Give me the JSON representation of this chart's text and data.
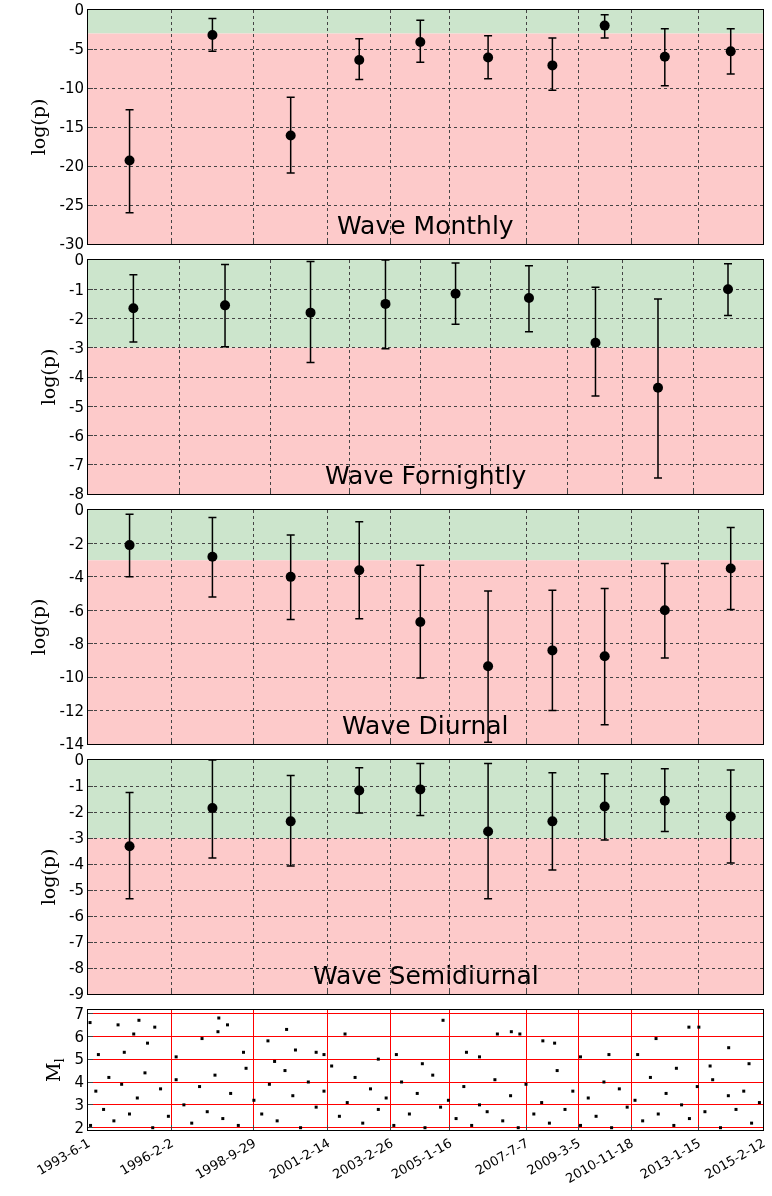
{
  "chart_data": [
    {
      "type": "scatter",
      "title": "Wave Monthly",
      "ylabel": "log(p)",
      "marker": "circle",
      "grid": true,
      "tick_labels": "y",
      "xlim": [
        "1993-06-01",
        "2015-02-12"
      ],
      "ylim": [
        -30,
        0
      ],
      "yticks": [
        -30,
        -25,
        -20,
        -15,
        -10,
        -5,
        0
      ],
      "xticks": [
        {
          "value": "1993-06-01",
          "label": null
        },
        {
          "value": "1996-02-02",
          "label": null
        },
        {
          "value": "1998-09-29",
          "label": null
        },
        {
          "value": "2001-02-14",
          "label": null
        },
        {
          "value": "2003-02-26",
          "label": null
        },
        {
          "value": "2005-01-16",
          "label": null
        },
        {
          "value": "2007-07-07",
          "label": null
        },
        {
          "value": "2009-03-05",
          "label": null
        },
        {
          "value": "2010-11-18",
          "label": null
        },
        {
          "value": "2013-01-15",
          "label": null
        },
        {
          "value": "2015-02-12",
          "label": null
        }
      ],
      "x": [
        "1994-10-02",
        "1997-06-01",
        "1999-12-07",
        "2002-02-19",
        "2004-02-06",
        "2006-04-12",
        "2008-05-06",
        "2010-01-10",
        "2011-12-17",
        "2014-01-29"
      ],
      "series": [
        {
          "color": "#000000",
          "values": [
            -19.3,
            -3.2,
            -16.1,
            -6.4,
            -4.1,
            -6.1,
            -7.1,
            -2.0,
            -6.0,
            -5.3
          ],
          "errors": [
            [
              -26,
              -12.8
            ],
            [
              -5.3,
              -1.1
            ],
            [
              -20.9,
              -11.2
            ],
            [
              -8.9,
              -3.7
            ],
            [
              -6.7,
              -1.3
            ],
            [
              -8.8,
              -3.3
            ],
            [
              -10.3,
              -3.6
            ],
            [
              -3.6,
              -0.6
            ],
            [
              -9.7,
              -2.4
            ],
            [
              -8.2,
              -2.4
            ]
          ]
        }
      ],
      "bands": [
        {
          "axis": "y",
          "from": -3,
          "to": 0,
          "color": "#cce5cc"
        },
        {
          "axis": "y",
          "from": -30,
          "to": -3,
          "color": "#fdcaca"
        }
      ]
    },
    {
      "type": "scatter",
      "title": "Wave Fornightly",
      "ylabel": "log(p)",
      "marker": "circle",
      "grid": true,
      "tick_labels": "y",
      "xlim": [
        "1993-06-01",
        "2015-02-12"
      ],
      "ylim": [
        -8,
        0
      ],
      "yticks": [
        -8,
        -7,
        -6,
        -5,
        -4,
        -3,
        -2,
        -1,
        0
      ],
      "xticks": [
        {
          "value": "1993-06-01",
          "label": null
        },
        {
          "value": "1996-05-05",
          "label": null
        },
        {
          "value": "1999-04-18",
          "label": null
        },
        {
          "value": "2001-11-02",
          "label": null
        },
        {
          "value": "2004-02-14",
          "label": null
        },
        {
          "value": "2006-05-05",
          "label": null
        },
        {
          "value": "2008-11-05",
          "label": null
        },
        {
          "value": "2010-08-13",
          "label": null
        },
        {
          "value": "2012-11-13",
          "label": null
        },
        {
          "value": "2015-02-12",
          "label": null
        }
      ],
      "x": [
        "1994-11-16",
        "1997-10-27",
        "2000-07-27",
        "2002-12-24",
        "2005-03-26",
        "2007-08-05",
        "2009-09-24",
        "2011-09-28",
        "2013-12-28"
      ],
      "series": [
        {
          "color": "#000000",
          "values": [
            -1.65,
            -1.55,
            -1.8,
            -1.5,
            -1.15,
            -1.3,
            -2.83,
            -4.37,
            -1.0
          ],
          "errors": [
            [
              -2.8,
              -0.5
            ],
            [
              -2.97,
              -0.15
            ],
            [
              -3.5,
              -0.05
            ],
            [
              -3.03,
              0
            ],
            [
              -2.2,
              -0.1
            ],
            [
              -2.45,
              -0.2
            ],
            [
              -4.65,
              -0.93
            ],
            [
              -7.45,
              -1.33
            ],
            [
              -1.9,
              -0.13
            ]
          ]
        }
      ],
      "bands": [
        {
          "axis": "y",
          "from": -3,
          "to": 0,
          "color": "#cce5cc"
        },
        {
          "axis": "y",
          "from": -8,
          "to": -3,
          "color": "#fdcaca"
        }
      ]
    },
    {
      "type": "scatter",
      "title": "Wave Diurnal",
      "ylabel": "log(p)",
      "marker": "circle",
      "grid": true,
      "tick_labels": "y",
      "xlim": [
        "1993-06-01",
        "2015-02-12"
      ],
      "ylim": [
        -14,
        0
      ],
      "yticks": [
        -14,
        -12,
        -10,
        -8,
        -6,
        -4,
        -2,
        0
      ],
      "xticks": [
        {
          "value": "1993-06-01",
          "label": null
        },
        {
          "value": "1996-02-02",
          "label": null
        },
        {
          "value": "1998-09-29",
          "label": null
        },
        {
          "value": "2001-02-14",
          "label": null
        },
        {
          "value": "2003-02-26",
          "label": null
        },
        {
          "value": "2005-01-16",
          "label": null
        },
        {
          "value": "2007-07-07",
          "label": null
        },
        {
          "value": "2009-03-05",
          "label": null
        },
        {
          "value": "2010-11-18",
          "label": null
        },
        {
          "value": "2013-01-15",
          "label": null
        },
        {
          "value": "2015-02-12",
          "label": null
        }
      ],
      "x": [
        "1994-10-02",
        "1997-06-01",
        "1999-12-07",
        "2002-02-19",
        "2004-02-06",
        "2006-04-12",
        "2008-05-06",
        "2010-01-10",
        "2011-12-17",
        "2014-01-29"
      ],
      "series": [
        {
          "color": "#000000",
          "values": [
            -2.1,
            -2.8,
            -4.0,
            -3.6,
            -6.7,
            -9.35,
            -8.4,
            -8.75,
            -6.0,
            -3.5
          ],
          "errors": [
            [
              -4.0,
              -0.25
            ],
            [
              -5.2,
              -0.45
            ],
            [
              -6.55,
              -1.5
            ],
            [
              -6.5,
              -0.7
            ],
            [
              -10.05,
              -3.3
            ],
            [
              -13.9,
              -4.85
            ],
            [
              -12.0,
              -4.8
            ],
            [
              -12.85,
              -4.7
            ],
            [
              -8.85,
              -3.2
            ],
            [
              -5.95,
              -1.05
            ]
          ]
        }
      ],
      "bands": [
        {
          "axis": "y",
          "from": -3,
          "to": 0,
          "color": "#cce5cc"
        },
        {
          "axis": "y",
          "from": -14,
          "to": -3,
          "color": "#fdcaca"
        }
      ]
    },
    {
      "type": "scatter",
      "title": "Wave Semidiurnal",
      "ylabel": "log(p)",
      "marker": "circle",
      "grid": true,
      "tick_labels": "y",
      "xlim": [
        "1993-06-01",
        "2015-02-12"
      ],
      "ylim": [
        -9,
        0
      ],
      "yticks": [
        -9,
        -8,
        -7,
        -6,
        -5,
        -4,
        -3,
        -2,
        -1,
        0
      ],
      "xticks": [
        {
          "value": "1993-06-01",
          "label": null
        },
        {
          "value": "1996-02-02",
          "label": null
        },
        {
          "value": "1998-09-29",
          "label": null
        },
        {
          "value": "2001-02-14",
          "label": null
        },
        {
          "value": "2003-02-26",
          "label": null
        },
        {
          "value": "2005-01-16",
          "label": null
        },
        {
          "value": "2007-07-07",
          "label": null
        },
        {
          "value": "2009-03-05",
          "label": null
        },
        {
          "value": "2010-11-18",
          "label": null
        },
        {
          "value": "2013-01-15",
          "label": null
        },
        {
          "value": "2015-02-12",
          "label": null
        }
      ],
      "x": [
        "1994-10-02",
        "1997-06-01",
        "1999-12-07",
        "2002-02-19",
        "2004-02-06",
        "2006-04-12",
        "2008-05-06",
        "2010-01-10",
        "2011-12-17",
        "2014-01-29"
      ],
      "series": [
        {
          "color": "#000000",
          "values": [
            -3.32,
            -1.85,
            -2.36,
            -1.17,
            -1.13,
            -2.75,
            -2.36,
            -1.79,
            -1.57,
            -2.17
          ],
          "errors": [
            [
              -5.34,
              -1.25
            ],
            [
              -3.77,
              0
            ],
            [
              -4.08,
              -0.6
            ],
            [
              -2.04,
              -0.3
            ],
            [
              -2.13,
              -0.13
            ],
            [
              -5.34,
              -0.13
            ],
            [
              -4.23,
              -0.49
            ],
            [
              -3.08,
              -0.53
            ],
            [
              -2.75,
              -0.34
            ],
            [
              -3.96,
              -0.38
            ]
          ]
        }
      ],
      "bands": [
        {
          "axis": "y",
          "from": -3,
          "to": 0,
          "color": "#cce5cc"
        },
        {
          "axis": "y",
          "from": -9,
          "to": -3,
          "color": "#fdcaca"
        }
      ]
    },
    {
      "type": "scatter",
      "ylabel": "M$_{l}$",
      "marker": "square",
      "grid": true,
      "xlim": [
        "1993-06-01",
        "2015-02-12"
      ],
      "ylim": [
        1.9,
        7.15
      ],
      "yticks": [
        2,
        3,
        4,
        5,
        6,
        7
      ],
      "xticks": [
        {
          "value": "1993-06-01",
          "label": "1993-6-1"
        },
        {
          "value": "1996-02-02",
          "label": "1996-2-2"
        },
        {
          "value": "1998-09-29",
          "label": "1998-9-29"
        },
        {
          "value": "2001-02-14",
          "label": "2001-2-14"
        },
        {
          "value": "2003-02-26",
          "label": "2003-2-26"
        },
        {
          "value": "2005-01-16",
          "label": "2005-1-16"
        },
        {
          "value": "2007-07-07",
          "label": "2007-7-7"
        },
        {
          "value": "2009-03-05",
          "label": "2009-3-5"
        },
        {
          "value": "2010-11-18",
          "label": "2010-11-18"
        },
        {
          "value": "2013-01-15",
          "label": "2013-1-15"
        },
        {
          "value": "2015-02-12",
          "label": "2015-2-12"
        }
      ],
      "x": [
        "1993-06-25",
        "1994-05-20",
        "1995-01-20",
        "1994-11-20",
        "1995-07-25",
        "1995-05-01",
        "1997-08-05",
        "1997-08-15",
        "1997-11-25",
        "1997-01-30",
        "1999-03-15",
        "1999-10-20",
        "2001-09-05",
        "2004-10-30",
        "2006-07-30",
        "2007-01-10",
        "2007-04-20",
        "2008-01-15",
        "2012-09-25",
        "2013-01-20",
        "2011-09-05",
        "2014-01-05",
        "1993-10-01",
        "1994-08-01",
        "1996-04-01",
        "1998-06-01",
        "2000-02-01",
        "2000-10-01",
        "2001-01-01",
        "2002-10-01",
        "2003-05-01",
        "2005-08-01",
        "2006-01-01",
        "2008-06-01",
        "2009-04-01",
        "2010-03-01",
        "2011-02-01",
        "2013-06-01",
        "2014-09-01",
        "2012-05-01",
        "2004-03-01",
        "1999-06-01",
        "1993-07-01",
        "1993-09-01",
        "1993-12-01",
        "1994-02-01",
        "1994-04-01",
        "1994-07-01",
        "1994-10-01",
        "1995-01-01",
        "1995-04-01",
        "1995-07-01",
        "1995-10-01",
        "1996-01-01",
        "1996-04-01",
        "1996-07-01",
        "1996-10-01",
        "1997-01-01",
        "1997-04-01",
        "1997-07-01",
        "1997-10-01",
        "1998-01-01",
        "1998-04-01",
        "1998-07-01",
        "1998-10-01",
        "1999-01-01",
        "1999-04-01",
        "1999-07-01",
        "1999-10-01",
        "2000-01-01",
        "2000-04-01",
        "2000-07-01",
        "2000-10-01",
        "2001-01-01",
        "2001-04-01",
        "2001-07-01",
        "2001-10-01",
        "2002-01-01",
        "2002-04-01",
        "2002-07-01",
        "2002-10-01",
        "2003-01-01",
        "2003-04-01",
        "2003-07-01",
        "2003-10-01",
        "2004-01-01",
        "2004-04-01",
        "2004-07-01",
        "2004-10-01",
        "2005-01-01",
        "2005-04-01",
        "2005-07-01",
        "2005-10-01",
        "2006-01-01",
        "2006-04-01",
        "2006-07-01",
        "2006-10-01",
        "2007-01-01",
        "2007-04-01",
        "2007-07-01",
        "2007-10-01",
        "2008-01-01",
        "2008-04-01",
        "2008-07-01",
        "2008-10-01",
        "2009-01-01",
        "2009-04-01",
        "2009-07-01",
        "2009-10-01",
        "2010-01-01",
        "2010-04-01",
        "2010-07-01",
        "2010-10-01",
        "2011-01-01",
        "2011-04-01",
        "2011-07-01",
        "2011-10-01",
        "2012-01-01",
        "2012-04-01",
        "2012-07-01",
        "2012-10-01",
        "2013-01-01",
        "2013-04-01",
        "2013-07-01",
        "2013-10-01",
        "2014-01-01",
        "2014-04-01",
        "2014-07-01",
        "2014-10-01",
        "2015-01-01"
      ],
      "series": [
        {
          "color": "#000000",
          "values": [
            6.6,
            6.5,
            6.7,
            6.1,
            6.4,
            5.7,
            6.2,
            6.8,
            6.5,
            5.9,
            5.8,
            6.3,
            6.1,
            6.7,
            6.1,
            6.2,
            6.1,
            5.8,
            6.4,
            6.4,
            5.9,
            5.5,
            5.2,
            5.3,
            5.1,
            5.3,
            5.4,
            5.3,
            5.2,
            5.0,
            5.2,
            5.3,
            5.1,
            5.7,
            5.1,
            5.2,
            5.2,
            4.7,
            4.8,
            4.6,
            4.8,
            4.9,
            2.1,
            3.6,
            2.8,
            4.2,
            2.3,
            3.9,
            2.6,
            3.3,
            4.4,
            2.0,
            3.7,
            2.5,
            4.1,
            3.0,
            2.2,
            3.8,
            2.7,
            4.3,
            2.4,
            3.5,
            2.1,
            4.6,
            3.2,
            2.6,
            3.9,
            2.3,
            4.5,
            3.4,
            2.0,
            4.0,
            2.9,
            3.6,
            4.7,
            2.5,
            3.1,
            4.2,
            2.2,
            3.7,
            2.8,
            3.3,
            2.1,
            4.0,
            2.6,
            3.5,
            2.0,
            4.3,
            2.9,
            3.2,
            2.4,
            3.8,
            2.1,
            3.0,
            2.7,
            4.1,
            2.3,
            3.4,
            2.0,
            3.9,
            2.6,
            3.1,
            2.2,
            4.5,
            2.8,
            3.6,
            2.1,
            3.3,
            2.5,
            4.0,
            2.0,
            3.7,
            2.9,
            3.2,
            2.3,
            4.2,
            2.6,
            3.5,
            2.1,
            3.0,
            2.4,
            3.8,
            2.7,
            4.1,
            2.0,
            3.4,
            2.8,
            3.6,
            2.2,
            3.1
          ]
        }
      ]
    }
  ]
}
